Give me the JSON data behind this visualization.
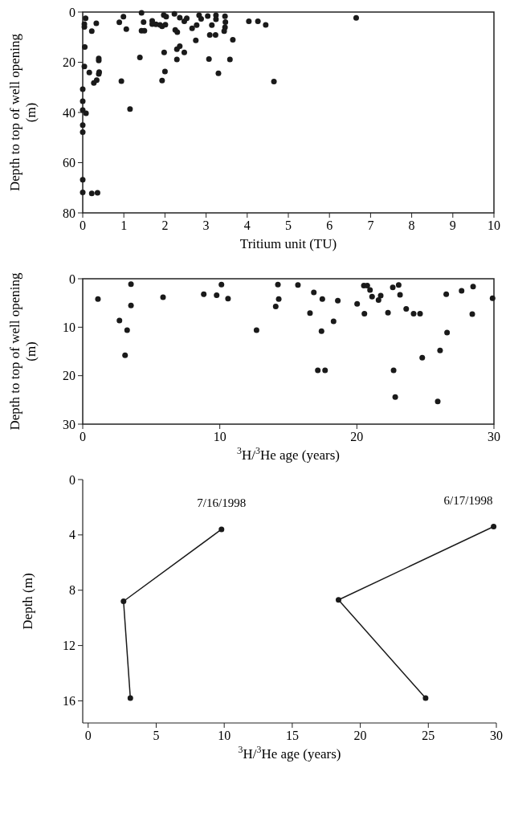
{
  "chart_data": [
    {
      "type": "scatter",
      "xlabel": "Tritium unit (TU)",
      "ylabel": "Depth to top of well opening (m)",
      "xlim": [
        0,
        10
      ],
      "xticks": [
        0,
        1,
        2,
        3,
        4,
        5,
        6,
        7,
        8,
        9,
        10
      ],
      "ylim": [
        80,
        0
      ],
      "yticks": [
        0,
        20,
        40,
        60,
        80
      ],
      "marker": "circle",
      "grid": false,
      "series": [
        {
          "color": "#1a1a1a",
          "x": [
            0.07,
            0.04,
            0.04,
            0.33,
            0.22,
            0.05,
            0.39,
            0.39,
            0.04,
            0.16,
            0.4,
            0.39,
            0.34,
            0.27,
            0,
            0,
            0,
            0.08,
            0,
            0,
            0,
            0,
            0.22,
            0.36,
            0.89,
            0.99,
            1.06,
            0.94,
            1.15,
            1.43,
            1.48,
            1.43,
            1.5,
            1.39,
            1.69,
            1.69,
            1.78,
            1.88,
            1.93,
            2.01,
            1.97,
            2.03,
            1.98,
            2.0,
            1.93,
            2.23,
            2.36,
            2.47,
            2.53,
            2.25,
            2.3,
            2.36,
            2.29,
            2.47,
            2.29,
            2.66,
            2.77,
            2.75,
            2.83,
            2.88,
            3.04,
            3.14,
            3.24,
            3.24,
            3.09,
            3.23,
            3.07,
            3.3,
            3.46,
            3.47,
            3.46,
            3.44,
            3.65,
            3.58,
            4.04,
            4.26,
            4.45,
            4.65,
            6.65
          ],
          "values": [
            2.5,
            4.8,
            5.9,
            4.5,
            7.6,
            13.9,
            18.5,
            19.3,
            21.7,
            24.1,
            23.9,
            24.6,
            27.1,
            28.2,
            30.7,
            35.5,
            39,
            40.3,
            45,
            47.8,
            66.8,
            71.8,
            72.2,
            72,
            4.1,
            1.8,
            6.8,
            27.5,
            38.6,
            0.3,
            4,
            7.4,
            7.4,
            18.1,
            3.5,
            4.8,
            4.9,
            5.1,
            5.7,
            5,
            1.2,
            1.8,
            16.1,
            23.7,
            27.3,
            0.7,
            2.2,
            3.7,
            2.5,
            7.1,
            8,
            13.6,
            14.8,
            16.1,
            18.9,
            6.5,
            5.2,
            11.3,
            1.3,
            2.7,
            1.6,
            5.2,
            1.3,
            2.9,
            9.1,
            9.1,
            18.7,
            24.4,
            1.7,
            4,
            6.1,
            7.6,
            11,
            18.9,
            3.7,
            3.7,
            5.1,
            27.7,
            2.3
          ]
        }
      ]
    },
    {
      "type": "scatter",
      "xlabel": "$^{3}$H/$^{3}$He age (years)",
      "ylabel": "Depth to top of well opening (m)",
      "xlim": [
        0,
        30
      ],
      "xticks": [
        0,
        10,
        20,
        30
      ],
      "ylim": [
        30,
        0
      ],
      "yticks": [
        0,
        10,
        20,
        30
      ],
      "marker": "circle",
      "grid": false,
      "series": [
        {
          "color": "#1a1a1a",
          "x": [
            1.11,
            3.52,
            3.52,
            2.68,
            3.24,
            3.09,
            5.86,
            8.83,
            9.77,
            10.12,
            10.6,
            12.68,
            14.24,
            14.3,
            14.08,
            15.7,
            16.86,
            17.48,
            18.61,
            20.02,
            20.51,
            20.76,
            20.96,
            21.11,
            21.74,
            21.58,
            22.62,
            23.05,
            23.15,
            16.58,
            18.3,
            17.42,
            20.55,
            22.27,
            23.6,
            24.14,
            24.61,
            26.52,
            27.64,
            28.48,
            29.9,
            28.42,
            26.58,
            26.07,
            24.77,
            17.15,
            17.68,
            22.68,
            22.8,
            25.9
          ],
          "values": [
            4.2,
            1.1,
            5.5,
            8.6,
            10.6,
            15.8,
            3.8,
            3.2,
            3.4,
            1.2,
            4.1,
            10.6,
            1.2,
            4.2,
            5.7,
            1.3,
            2.8,
            4.2,
            4.5,
            5.2,
            1.4,
            1.4,
            2.3,
            3.7,
            3.5,
            4.4,
            1.8,
            1.3,
            3.3,
            7.1,
            8.8,
            10.8,
            7.2,
            7,
            6.2,
            7.2,
            7.2,
            3.2,
            2.5,
            1.6,
            4,
            7.3,
            11.1,
            14.8,
            16.3,
            18.9,
            18.9,
            18.9,
            24.4,
            25.3
          ]
        }
      ]
    },
    {
      "type": "line",
      "xlabel": "$^{3}$H/$^{3}$He age (years)",
      "ylabel": "Depth (m)",
      "xlim": [
        -0.4,
        30
      ],
      "xticks": [
        0,
        5,
        10,
        15,
        20,
        25,
        30
      ],
      "ylim": [
        17.6,
        0
      ],
      "yticks": [
        0,
        4,
        8,
        12,
        16
      ],
      "marker": "circle",
      "line_style": "solid",
      "grid": false,
      "series": [
        {
          "color": "#1a1a1a",
          "x": [
            9.8,
            2.6,
            3.1
          ],
          "values": [
            3.6,
            8.8,
            15.8
          ]
        },
        {
          "color": "#1a1a1a",
          "x": [
            29.8,
            18.4,
            24.8
          ],
          "values": [
            3.4,
            8.7,
            15.8
          ]
        }
      ],
      "annotations": [
        {
          "text": "7/16/1998",
          "x": 9.8,
          "y": 3.6
        },
        {
          "text": "6/17/1998",
          "x": 29.8,
          "y": 3.4
        }
      ]
    }
  ]
}
